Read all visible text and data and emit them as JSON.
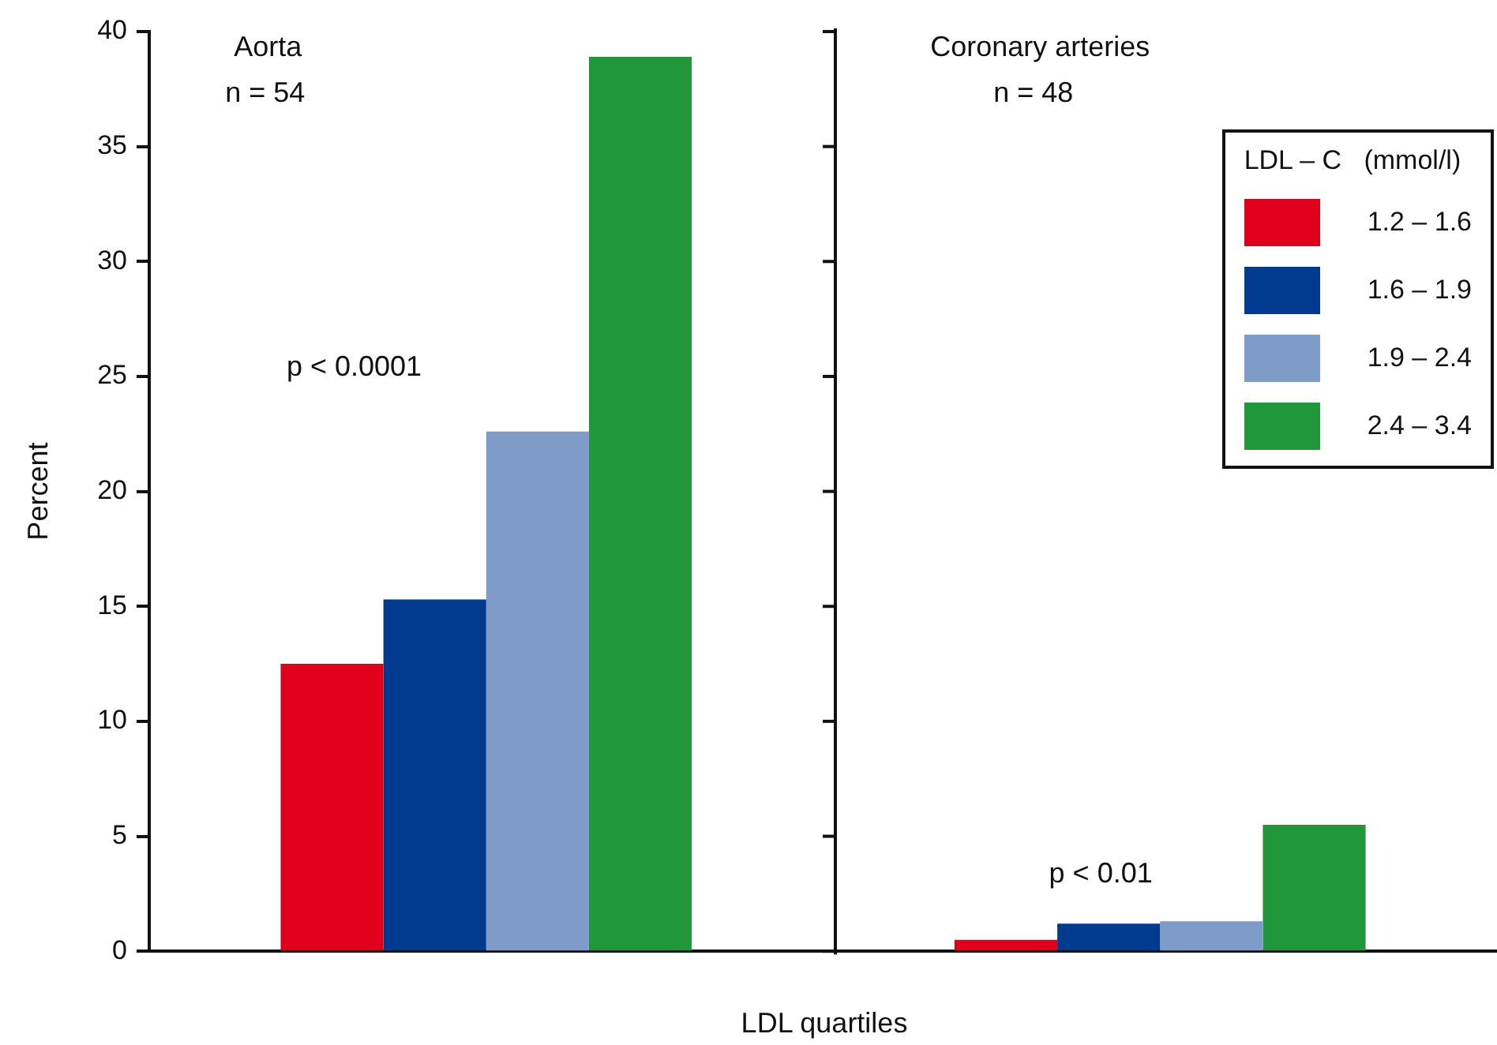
{
  "chart_data": {
    "type": "bar",
    "ylabel": "Percent",
    "xlabel": "LDL quartiles",
    "legend_title": "LDL – C   (mmol/l)",
    "annotations": [
      "Aorta",
      "n = 54",
      "p < 0.0001",
      "Coronary arteries",
      "n = 48",
      "p < 0.01"
    ],
    "categories": [
      null,
      null
    ],
    "series": [
      {
        "name": "1.2 – 1.6",
        "color": "#e0001b",
        "values": [
          12.5,
          0.5
        ]
      },
      {
        "name": "1.6 – 1.9",
        "color": "#003b8f",
        "values": [
          15.3,
          1.2
        ]
      },
      {
        "name": "1.9 – 2.4",
        "color": "#7f9cc9",
        "values": [
          22.6,
          1.3
        ]
      },
      {
        "name": "2.4 – 3.4",
        "color": "#21973b",
        "values": [
          38.9,
          5.5
        ]
      }
    ],
    "ylim": [
      0,
      40
    ],
    "yticks": [
      0,
      5,
      10,
      15,
      20,
      25,
      30,
      35,
      40
    ],
    "grid": false,
    "legend": "top right"
  }
}
